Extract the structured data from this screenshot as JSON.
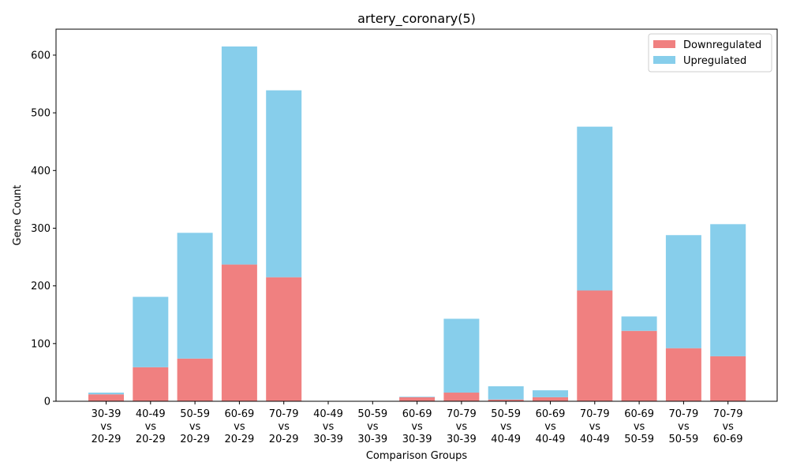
{
  "chart_data": {
    "type": "bar",
    "stacked": true,
    "title": "artery_coronary(5)",
    "xlabel": "Comparison Groups",
    "ylabel": "Gene Count",
    "ylim": [
      0,
      645
    ],
    "yticks": [
      0,
      100,
      200,
      300,
      400,
      500,
      600
    ],
    "grid": false,
    "legend_position": "top-right",
    "categories": [
      "30-39\nvs\n20-29",
      "40-49\nvs\n20-29",
      "50-59\nvs\n20-29",
      "60-69\nvs\n20-29",
      "70-79\nvs\n20-29",
      "40-49\nvs\n30-39",
      "50-59\nvs\n30-39",
      "60-69\nvs\n30-39",
      "70-79\nvs\n30-39",
      "50-59\nvs\n40-49",
      "60-69\nvs\n40-49",
      "70-79\nvs\n40-49",
      "60-69\nvs\n50-59",
      "70-79\nvs\n50-59",
      "70-79\nvs\n60-69"
    ],
    "series": [
      {
        "name": "Downregulated",
        "color": "#f08080",
        "values": [
          12,
          59,
          74,
          237,
          215,
          0,
          0,
          7,
          15,
          3,
          7,
          192,
          122,
          92,
          78
        ]
      },
      {
        "name": "Upregulated",
        "color": "#87ceeb",
        "values": [
          3,
          122,
          218,
          378,
          324,
          0,
          0,
          1,
          128,
          23,
          12,
          284,
          25,
          196,
          229
        ]
      }
    ]
  }
}
